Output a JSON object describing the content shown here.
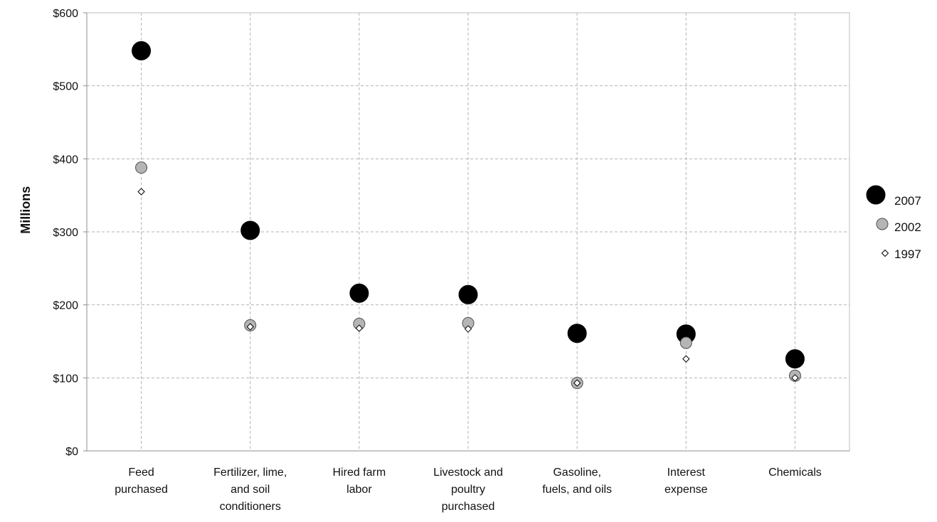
{
  "chart_data": {
    "type": "scatter",
    "title": "",
    "xlabel": "",
    "ylabel": "Millions",
    "ylim": [
      0,
      600
    ],
    "y_ticks": [
      0,
      100,
      200,
      300,
      400,
      500,
      600
    ],
    "y_tick_labels": [
      "$0",
      "$100",
      "$200",
      "$300",
      "$400",
      "$500",
      "$600"
    ],
    "grid": true,
    "legend_position": "right",
    "categories": [
      [
        "Feed",
        "purchased"
      ],
      [
        "Fertilizer, lime,",
        "and soil",
        "conditioners"
      ],
      [
        "Hired farm",
        "labor"
      ],
      [
        "Livestock and",
        "poultry",
        "purchased"
      ],
      [
        "Gasoline,",
        "fuels, and oils"
      ],
      [
        "Interest",
        "expense"
      ],
      [
        "Chemicals"
      ]
    ],
    "series": [
      {
        "name": "1997",
        "marker": "diamond",
        "color": "#ffffff",
        "values": [
          355,
          170,
          168,
          167,
          93,
          126,
          100
        ]
      },
      {
        "name": "2002",
        "marker": "circle-medium",
        "color": "#b5b5b5",
        "values": [
          388,
          172,
          174,
          175,
          93,
          148,
          103
        ]
      },
      {
        "name": "2007",
        "marker": "circle-large",
        "color": "#000000",
        "values": [
          548,
          302,
          216,
          214,
          161,
          160,
          126
        ]
      }
    ],
    "legend_order": [
      "2007",
      "2002",
      "1997"
    ]
  }
}
